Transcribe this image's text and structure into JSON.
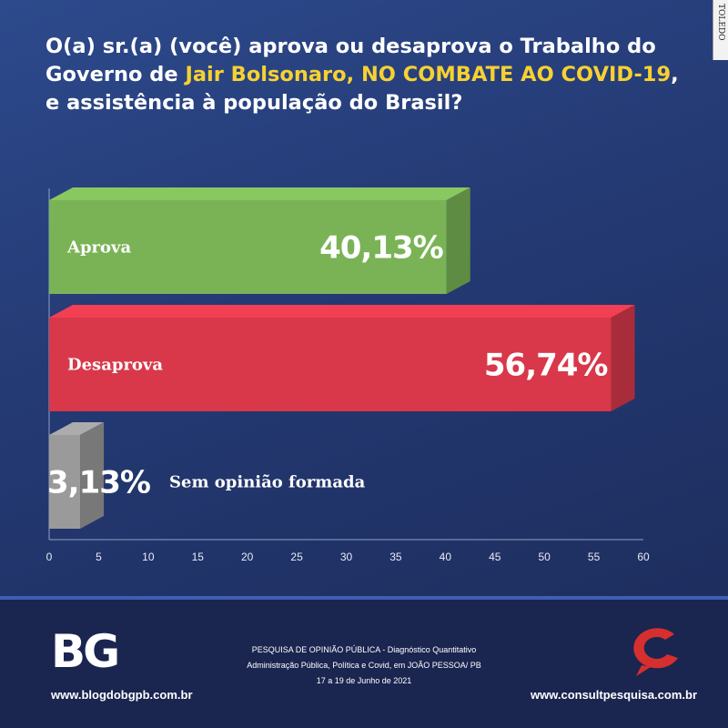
{
  "title": {
    "part1": "O(a) sr.(a) (você) aprova ou desaprova o Trabalho do Governo de ",
    "highlight1": "Jair Bolsonaro, NO COMBATE AO COVID-19",
    "part2": ", e assistência à população do Brasil?"
  },
  "colors": {
    "highlight": "#f7d131",
    "aprova": "#7ab356",
    "desaprova": "#d8384a",
    "sem_opiniao": "#9a9a9a"
  },
  "chart_data": {
    "type": "bar",
    "orientation": "horizontal",
    "title": "O(a) sr.(a) (você) aprova ou desaprova o Trabalho do Governo de Jair Bolsonaro, NO COMBATE AO COVID-19, e assistência à população do Brasil?",
    "categories": [
      "Aprova",
      "Desaprova",
      "Sem opinião formada"
    ],
    "values": [
      40.13,
      56.74,
      3.13
    ],
    "value_labels": [
      "40,13%",
      "56,74%",
      "3,13%"
    ],
    "xlim": [
      0,
      60
    ],
    "xticks": [
      0,
      5,
      10,
      15,
      20,
      25,
      30,
      35,
      40,
      45,
      50,
      55,
      60
    ],
    "grid": false,
    "legend": "none"
  },
  "footer": {
    "logo_text": "BG",
    "left_url": "www.blogdobgpb.com.br",
    "survey_lines": [
      "PESQUISA DE OPINIÃO PÚBLICA - Diagnóstico Quantitativo",
      "Administração Pública, Política e Covid, em JOÃO PESSOA/ PB",
      "17 a 19 de Junho de 2021"
    ],
    "right_url": "www.consultpesquisa.com.br",
    "seal_text": "TOLEDO"
  }
}
